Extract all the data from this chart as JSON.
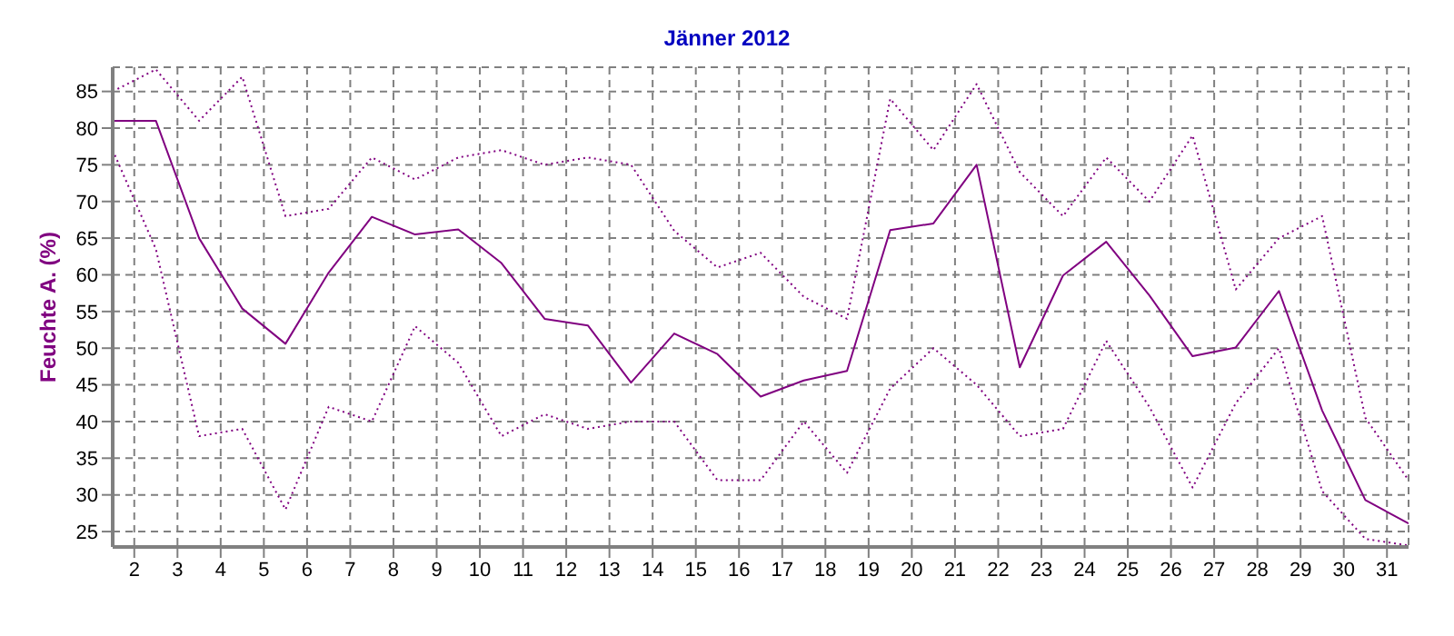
{
  "chart_data": {
    "type": "line",
    "title": "Jänner 2012",
    "ylabel": "Feuchte A. (%)",
    "x": [
      1.5,
      2.5,
      3.5,
      4.5,
      5.5,
      6.5,
      7.5,
      8.5,
      9.5,
      10.5,
      11.5,
      12.5,
      13.5,
      14.5,
      15.5,
      16.5,
      17.5,
      18.5,
      19.5,
      20.5,
      21.5,
      22.5,
      23.5,
      24.5,
      25.5,
      26.5,
      27.5,
      28.5,
      29.5,
      30.5,
      31.5
    ],
    "xlim": [
      1.5,
      31.5
    ],
    "xticks": [
      2,
      3,
      4,
      5,
      6,
      7,
      8,
      9,
      10,
      11,
      12,
      13,
      14,
      15,
      16,
      17,
      18,
      19,
      20,
      21,
      22,
      23,
      24,
      25,
      26,
      27,
      28,
      29,
      30,
      31
    ],
    "ylim": [
      22.9,
      88.3
    ],
    "yticks": [
      25,
      30,
      35,
      40,
      45,
      50,
      55,
      60,
      65,
      70,
      75,
      80,
      85
    ],
    "grid": true,
    "marker": "none",
    "series": [
      {
        "color": "#800080",
        "line_style": "solid",
        "values": [
          81,
          81,
          65,
          55.4,
          50.6,
          60.3,
          67.9,
          65.5,
          66.2,
          61.6,
          54,
          53.1,
          45.3,
          52,
          49.2,
          43.4,
          45.6,
          46.9,
          66.1,
          67,
          75,
          47.4,
          59.9,
          64.5,
          57.2,
          48.9,
          50.1,
          57.8,
          41.5,
          29.3,
          26.1
        ]
      },
      {
        "color": "#800080",
        "line_style": "dotted",
        "values": [
          85,
          88,
          81,
          87,
          68,
          69,
          76,
          73,
          76,
          77,
          75,
          76,
          75,
          66,
          61,
          63,
          57,
          54,
          84,
          77,
          86,
          74,
          68,
          76,
          70,
          79,
          58,
          65,
          68,
          40.5,
          32
        ]
      },
      {
        "color": "#800080",
        "line_style": "dotted",
        "values": [
          77,
          63.5,
          38,
          39,
          28,
          42,
          40,
          53,
          48,
          38,
          41,
          39,
          40,
          40,
          32,
          32,
          40,
          33,
          44.5,
          50,
          45,
          38,
          39,
          51,
          42,
          31,
          42.5,
          50,
          30.5,
          24,
          23.1
        ]
      }
    ]
  }
}
